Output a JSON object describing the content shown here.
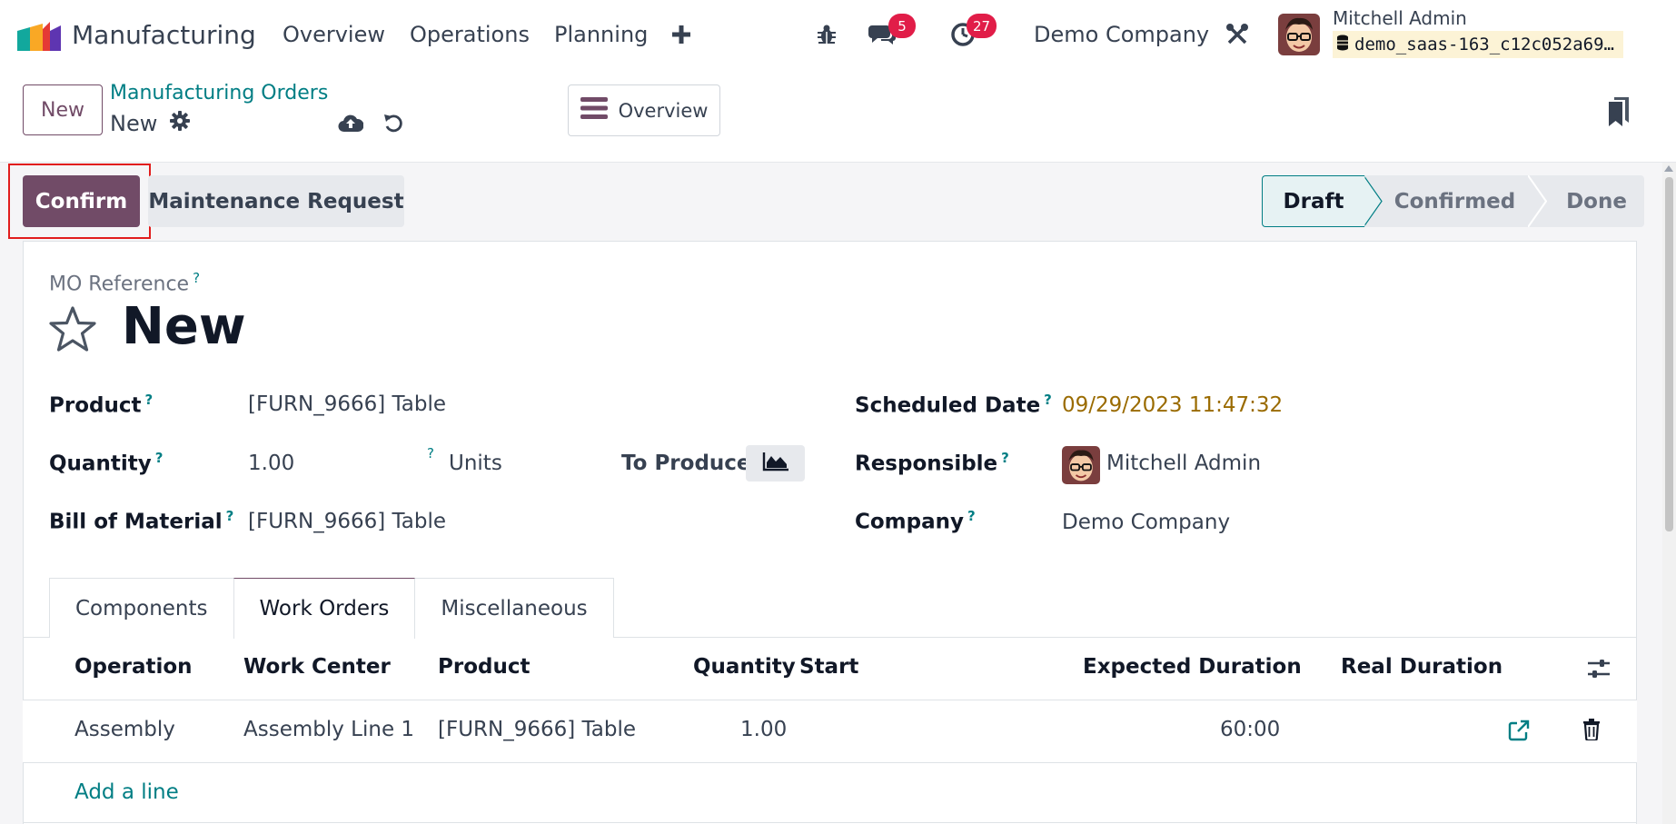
{
  "navbar": {
    "app_name": "Manufacturing",
    "menus": [
      "Overview",
      "Operations",
      "Planning"
    ],
    "messages_count": "5",
    "activities_count": "27",
    "company": "Demo Company",
    "user_name": "Mitchell Admin",
    "database": "demo_saas-163_c12c052a69…"
  },
  "control_panel": {
    "new_label": "New",
    "breadcrumb": "Manufacturing Orders",
    "record_name": "New",
    "overview_label": "Overview"
  },
  "actions": {
    "confirm_label": "Confirm",
    "maintenance_label": "Maintenance Request"
  },
  "statusbar": {
    "stages": [
      "Draft",
      "Confirmed",
      "Done"
    ],
    "active": "Draft"
  },
  "form": {
    "ref_label": "MO Reference",
    "title": "New",
    "help_mark": "?",
    "product_label": "Product",
    "product_value": "[FURN_9666] Table",
    "quantity_label": "Quantity",
    "quantity_value": "1.00",
    "uom_value": "Units",
    "to_produce_label": "To Produce",
    "bom_label": "Bill of Material",
    "bom_value": "[FURN_9666] Table",
    "scheduled_label": "Scheduled Date",
    "scheduled_value": "09/29/2023 11:47:32",
    "responsible_label": "Responsible",
    "responsible_value": "Mitchell Admin",
    "company_label": "Company",
    "company_value": "Demo Company"
  },
  "tabs": [
    "Components",
    "Work Orders",
    "Miscellaneous"
  ],
  "active_tab": "Work Orders",
  "work_orders": {
    "headers": [
      "Operation",
      "Work Center",
      "Product",
      "Quantity",
      "Start",
      "Expected Duration",
      "Real Duration"
    ],
    "rows": [
      {
        "operation": "Assembly",
        "work_center": "Assembly Line 1",
        "product": "[FURN_9666] Table",
        "quantity": "1.00",
        "start": "",
        "expected_duration": "60:00",
        "real_duration": ""
      }
    ],
    "add_line": "Add a line"
  },
  "colors": {
    "brand": "#714b67",
    "teal": "#017e84",
    "badge": "#e11d48",
    "highlight": "#e11d1d"
  },
  "icons": [
    "app-logo-icon",
    "plus-icon",
    "bug-icon",
    "chat-icon",
    "clock-icon",
    "tools-icon",
    "database-icon",
    "gear-icon",
    "cloud-upload-icon",
    "undo-icon",
    "hamburger-icon",
    "bookmark-icon",
    "star-icon",
    "area-chart-icon",
    "column-settings-icon",
    "external-link-icon",
    "trash-icon"
  ]
}
